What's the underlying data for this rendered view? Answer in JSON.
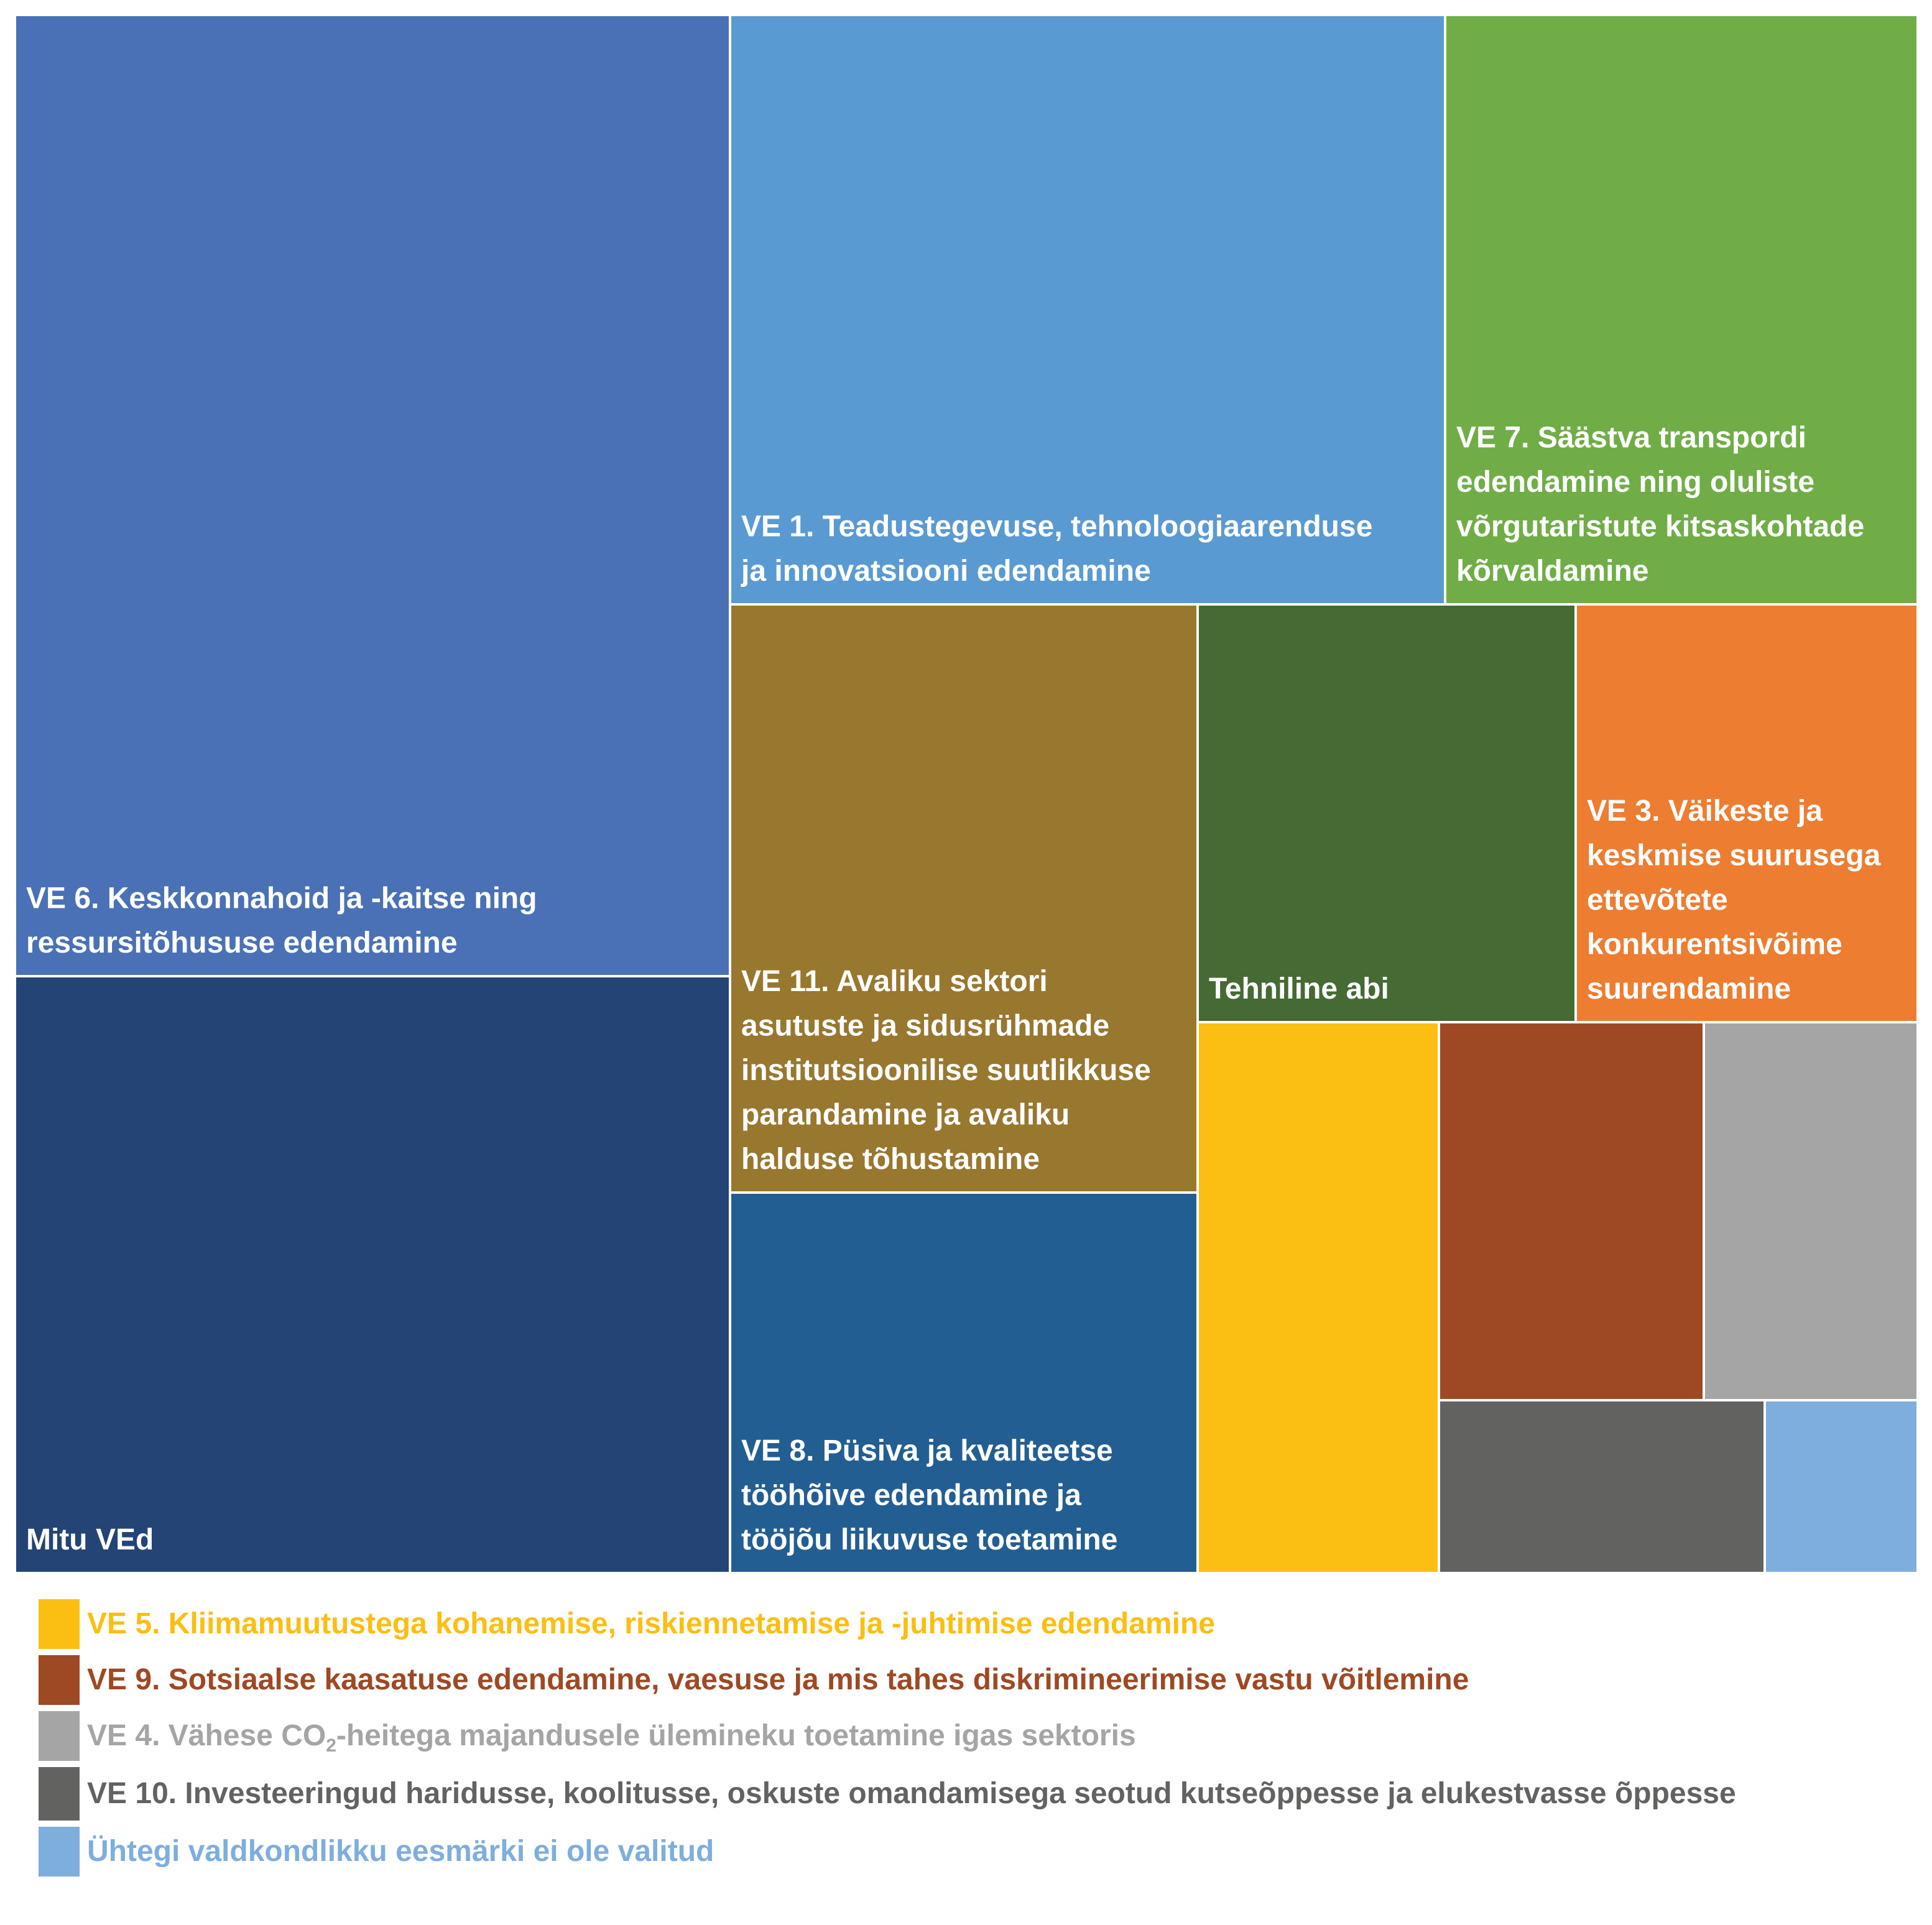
{
  "chart_data": {
    "type": "treemap",
    "tiles": [
      {
        "key": "ve6",
        "label": "VE 6. Keskkonnahoid ja -kaitse ning ressursitõhususe edendamine",
        "lines": [
          "VE 6. Keskkonnahoid ja -kaitse ning",
          "ressursitõhususe edendamine"
        ],
        "color": "#4A71B5",
        "relative_size": 0.2263
      },
      {
        "key": "mitu",
        "label": "Mitu VEd",
        "lines": [
          "Mitu VEd"
        ],
        "color": "#234475",
        "relative_size": 0.1405
      },
      {
        "key": "ve1",
        "label": "VE 1. Teadustegevuse, tehnoloogiaarenduse ja innovatsiooni edendamine",
        "lines": [
          "VE 1. Teadustegevuse, tehnoloogiaarenduse",
          "ja innovatsiooni edendamine"
        ],
        "color": "#5A9AD2",
        "relative_size": 0.1383
      },
      {
        "key": "ve7",
        "label": "VE 7. Säästva transpordi edendamine ning oluliste võrgutaristute kitsaskohtade kõrvaldamine",
        "lines": [
          "VE 7. Säästva transpordi",
          "edendamine ning oluliste",
          "võrgutaristute kitsaskohtade",
          "kõrvaldamine"
        ],
        "color": "#70AD47",
        "relative_size": 0.0917
      },
      {
        "key": "ve11",
        "label": "VE 11. Avaliku sektori asutuste ja sidusrühmade institutsioonilise suutlikkuse parandamine ja avaliku halduse tõhustamine",
        "lines": [
          "VE 11. Avaliku sektori",
          "asutuste ja sidusrühmade",
          "institutsioonilise suutlikkuse",
          "parandamine ja avaliku",
          "halduse tõhustamine"
        ],
        "color": "#98772F",
        "relative_size": 0.0902
      },
      {
        "key": "ve8",
        "label": "VE 8. Püsiva ja kvaliteetse tööhõive edendamine ja tööjõu liikuvuse toetamine",
        "lines": [
          "VE 8. Püsiva ja kvaliteetse",
          "tööhõive edendamine ja",
          "tööjõu liikuvuse toetamine"
        ],
        "color": "#235E92",
        "relative_size": 0.059
      },
      {
        "key": "ta",
        "label": "Tehniline abi",
        "lines": [
          "Tehniline abi"
        ],
        "color": "#456A33",
        "relative_size": 0.0524
      },
      {
        "key": "ve3",
        "label": "VE 3. Väikeste ja keskmise suurusega ettevõtete konkurentsivõime suurendamine",
        "lines": [
          "VE 3. Väikeste ja",
          "keskmise suurusega",
          "ettevõtete",
          "konkurentsivõime",
          "suurendamine"
        ],
        "color": "#ED7D31",
        "relative_size": 0.0475
      },
      {
        "key": "ve5",
        "label": "VE 5. Kliimamuutustega kohanemise, riskiennetamise ja -juhtimise edendamine",
        "lines": [],
        "color": "#FBBE12",
        "relative_size": 0.0485
      },
      {
        "key": "ve9",
        "label": "VE 9. Sotsiaalse kaasatuse edendamine, vaesuse ja mis tahes diskrimineerimise vastu võitlemine",
        "lines": [],
        "color": "#9E4924",
        "relative_size": 0.0338
      },
      {
        "key": "ve4",
        "label": "VE 4. Vähese CO2-heitega majandusele ülemineku toetamine igas sektoris",
        "lines": [],
        "color": "#A5A5A5",
        "relative_size": 0.0337
      },
      {
        "key": "ve10",
        "label": "VE 10. Investeeringud haridusse, koolitusse, oskuste omandamisega seotud kutseõppesse ja elukestvasse õppesse",
        "lines": [],
        "color": "#626361",
        "relative_size": 0.0194
      },
      {
        "key": "none",
        "label": "Ühtegi valdkondlikku eesmärki ei ole valitud",
        "lines": [],
        "color": "#7DAEDE",
        "relative_size": 0.0126
      }
    ]
  },
  "legend": [
    {
      "key": "ve5",
      "color": "#FBBE12",
      "text": "VE 5. Kliimamuutustega kohanemise, riskiennetamise ja -juhtimise edendamine"
    },
    {
      "key": "ve9",
      "color": "#9E4924",
      "text": "VE 9. Sotsiaalse kaasatuse edendamine, vaesuse ja mis tahes diskrimineerimise vastu võitlemine"
    },
    {
      "key": "ve4",
      "color": "#A5A5A5",
      "text_before": "VE 4. Vähese CO",
      "text_sub": "2",
      "text_after": "-heitega majandusele ülemineku toetamine igas sektoris"
    },
    {
      "key": "ve10",
      "color": "#626361",
      "text": "VE 10. Investeeringud haridusse, koolitusse, oskuste omandamisega seotud kutseõppesse ja elukestvasse õppesse"
    },
    {
      "key": "none",
      "color": "#7DAEDE",
      "text": "Ühtegi valdkondlikku eesmärki ei ole valitud"
    }
  ]
}
